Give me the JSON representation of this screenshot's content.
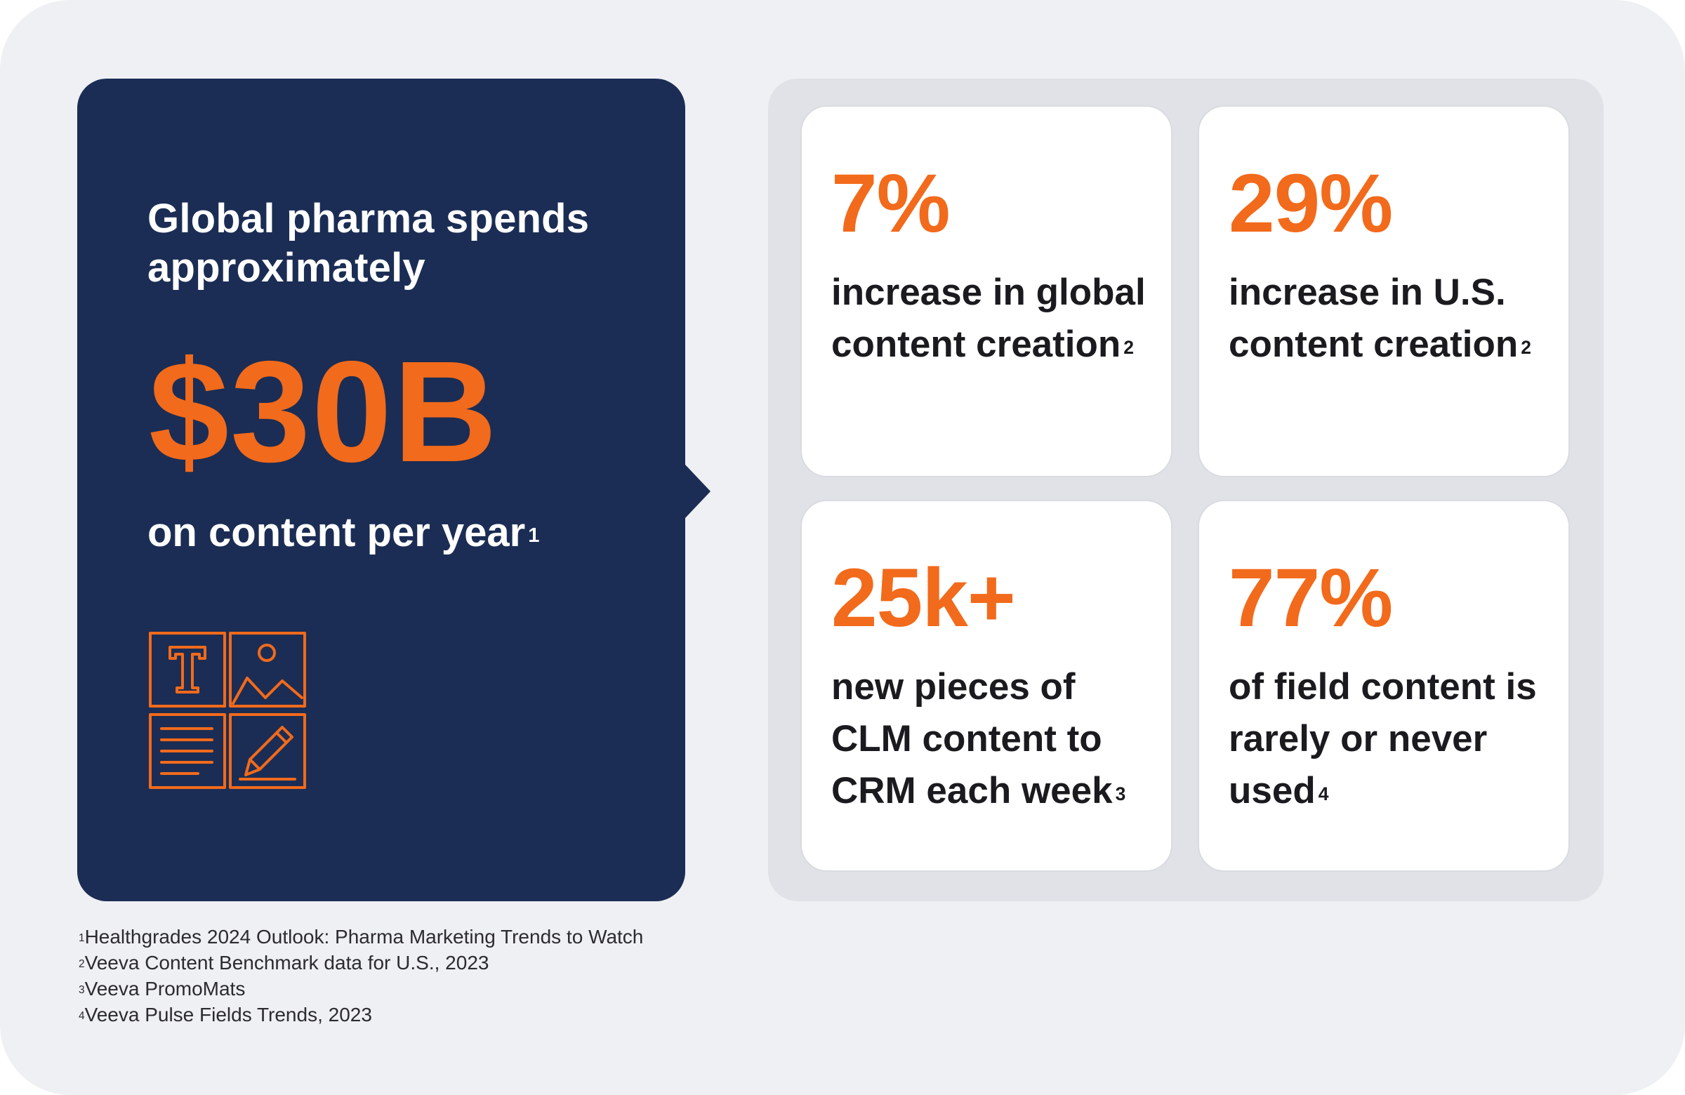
{
  "hero": {
    "lead": "Global pharma spends approximately",
    "amount": "$30B",
    "tail": "on content per year",
    "tail_ref": "1",
    "icon": "content-types-icon"
  },
  "stats": [
    {
      "value": "7%",
      "text": "increase in global content creation",
      "ref": "2"
    },
    {
      "value": "29%",
      "text": "increase in U.S. content creation",
      "ref": "2"
    },
    {
      "value": "25k+",
      "text": "new pieces of CLM content to CRM each week",
      "ref": "3"
    },
    {
      "value": "77%",
      "text": "of field content is rarely or never used",
      "ref": "4"
    }
  ],
  "footnotes": [
    {
      "num": "1",
      "text": "Healthgrades 2024 Outlook: Pharma Marketing Trends to Watch"
    },
    {
      "num": "2",
      "text": "Veeva Content Benchmark data for U.S., 2023"
    },
    {
      "num": "3",
      "text": "Veeva PromoMats"
    },
    {
      "num": "4",
      "text": "Veeva Pulse Fields Trends, 2023"
    }
  ],
  "colors": {
    "accent": "#f26a1b",
    "navy": "#1b2d54",
    "panel": "#e1e2e7",
    "background": "#eff0f4"
  }
}
